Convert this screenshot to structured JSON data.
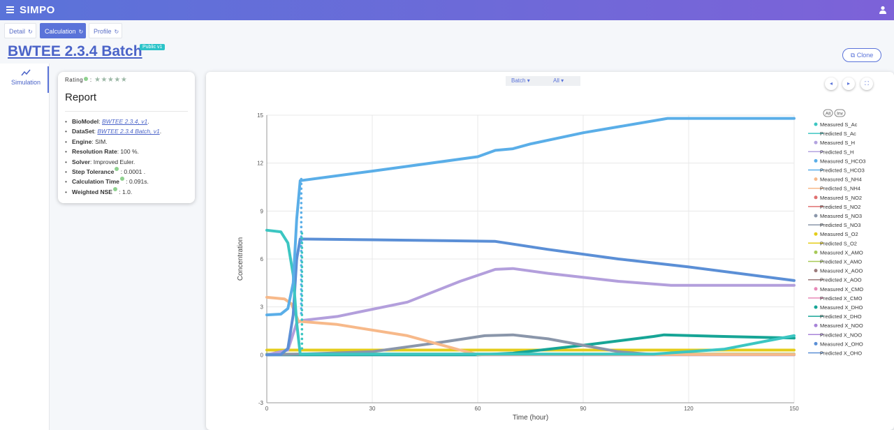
{
  "app": {
    "title": "SIMPO"
  },
  "tabs": [
    {
      "label": "Detail",
      "active": false
    },
    {
      "label": "Calculation",
      "active": true
    },
    {
      "label": "Profile",
      "active": false
    }
  ],
  "page": {
    "title": "BWTEE 2.3.4 Batch",
    "badge": "Public v1",
    "clone_label": "Clone"
  },
  "sidebar": {
    "items": [
      {
        "label": "Simulation",
        "icon": "line-chart-icon"
      }
    ]
  },
  "report": {
    "rating_label": "Rating",
    "rating_sep": ":",
    "stars": "★★★★★",
    "title": "Report",
    "biomodel_label": "BioModel",
    "biomodel_value": "BWTEE 2.3.4, v1",
    "dataset_label": "DataSet",
    "dataset_value": "BWTEE 2.3.4 Batch, v1",
    "engine_label": "Engine",
    "engine_value": ": SIM.",
    "resolution_label": "Resolution Rate",
    "resolution_value": ": 100 %.",
    "solver_label": "Solver",
    "solver_value": ": Improved Euler.",
    "step_label": "Step Tolerance",
    "step_value": ": 0.0001 .",
    "calc_label": "Calculation Time",
    "calc_value": ": 0.091s.",
    "nse_label": "Weighted NSE",
    "nse_value": ": 1.0."
  },
  "chart_controls": {
    "batch_label": "Batch",
    "all_label": "All",
    "legend_all": "All",
    "legend_inv": "Inv",
    "prev_icon": "chevron-left-icon",
    "next_icon": "chevron-right-icon",
    "fullscreen_icon": "fullscreen-icon"
  },
  "chart_data": {
    "type": "line",
    "xlabel": "Time (hour)",
    "ylabel": "Concentration",
    "xlim": [
      0,
      150
    ],
    "ylim": [
      -3,
      15
    ],
    "x_ticks": [
      0,
      30,
      60,
      90,
      120,
      150
    ],
    "y_ticks": [
      -3,
      0,
      3,
      6,
      9,
      12,
      15
    ],
    "grid": true,
    "legend_position": "right",
    "series": [
      {
        "name": "Predicted S_HCO3",
        "color": "#5aaee8",
        "points": [
          [
            0,
            2.5
          ],
          [
            4,
            2.55
          ],
          [
            6,
            2.9
          ],
          [
            7.5,
            4.5
          ],
          [
            8.5,
            8.5
          ],
          [
            9.5,
            10.9
          ],
          [
            30,
            11.5
          ],
          [
            60,
            12.4
          ],
          [
            65,
            12.8
          ],
          [
            70,
            12.9
          ],
          [
            75,
            13.2
          ],
          [
            90,
            13.9
          ],
          [
            114,
            14.8
          ],
          [
            150,
            14.8
          ]
        ]
      },
      {
        "name": "Predicted S_Ac",
        "color": "#3cc6c2",
        "points": [
          [
            0,
            7.8
          ],
          [
            4,
            7.7
          ],
          [
            6,
            7.0
          ],
          [
            7.5,
            5.0
          ],
          [
            8.5,
            2.0
          ],
          [
            9.5,
            0.05
          ],
          [
            110,
            0.05
          ],
          [
            130,
            0.35
          ],
          [
            150,
            1.2
          ]
        ]
      },
      {
        "name": "Predicted X_OHO",
        "color": "#5b8fd6",
        "points": [
          [
            0,
            0
          ],
          [
            4,
            0.02
          ],
          [
            6,
            0.4
          ],
          [
            7.5,
            2.5
          ],
          [
            8.5,
            6.0
          ],
          [
            9.5,
            7.25
          ],
          [
            30,
            7.2
          ],
          [
            50,
            7.15
          ],
          [
            65,
            7.1
          ],
          [
            80,
            6.6
          ],
          [
            100,
            6.0
          ],
          [
            120,
            5.5
          ],
          [
            150,
            4.65
          ]
        ]
      },
      {
        "name": "Predicted S_NH4",
        "color": "#f7b98a",
        "points": [
          [
            0,
            3.6
          ],
          [
            5,
            3.5
          ],
          [
            7,
            3.2
          ],
          [
            9,
            2.1
          ],
          [
            20,
            1.9
          ],
          [
            40,
            1.2
          ],
          [
            55,
            0.3
          ],
          [
            60,
            0.02
          ],
          [
            150,
            0.02
          ]
        ]
      },
      {
        "name": "Predicted X_NOO",
        "color": "#b39fdc",
        "points": [
          [
            0,
            0
          ],
          [
            6,
            0.3
          ],
          [
            8.5,
            2.0
          ],
          [
            10,
            2.15
          ],
          [
            20,
            2.4
          ],
          [
            40,
            3.3
          ],
          [
            55,
            4.6
          ],
          [
            65,
            5.35
          ],
          [
            70,
            5.4
          ],
          [
            80,
            5.1
          ],
          [
            100,
            4.6
          ],
          [
            115,
            4.35
          ],
          [
            150,
            4.35
          ]
        ]
      },
      {
        "name": "Predicted S_NO3",
        "color": "#8a96aa",
        "points": [
          [
            0,
            0
          ],
          [
            10,
            0.05
          ],
          [
            30,
            0.2
          ],
          [
            50,
            0.8
          ],
          [
            62,
            1.2
          ],
          [
            70,
            1.25
          ],
          [
            80,
            1.0
          ],
          [
            90,
            0.6
          ],
          [
            100,
            0.2
          ],
          [
            110,
            0.02
          ],
          [
            150,
            0.02
          ]
        ]
      },
      {
        "name": "Predicted X_DHO",
        "color": "#17a596",
        "points": [
          [
            0,
            0
          ],
          [
            60,
            0
          ],
          [
            70,
            0.1
          ],
          [
            90,
            0.6
          ],
          [
            110,
            1.15
          ],
          [
            113,
            1.25
          ],
          [
            130,
            1.15
          ],
          [
            150,
            1.05
          ]
        ]
      },
      {
        "name": "Predicted S_O2",
        "color": "#e4cd1a",
        "points": [
          [
            0,
            0.3
          ],
          [
            150,
            0.3
          ]
        ]
      },
      {
        "name": "Predicted X_AMO",
        "color": "#a7c957",
        "points": [
          [
            0,
            0.05
          ],
          [
            150,
            0.05
          ]
        ]
      },
      {
        "name": "Predicted X_CMO",
        "color": "#a783d8",
        "points": [
          [
            0,
            0.0
          ],
          [
            150,
            0.0
          ]
        ]
      }
    ],
    "measured_points": [
      {
        "name": "Measured S_HCO3",
        "color": "#5aaee8",
        "x": 9.8,
        "y_from": 2.6,
        "y_to": 11.0
      },
      {
        "name": "Measured S_Ac",
        "color": "#3cc6c2",
        "x": 10.0,
        "y_from": 0.4,
        "y_to": 7.6
      }
    ],
    "legend": [
      {
        "label": "Measured S_Ac",
        "color": "#3cc6c2",
        "kind": "dot"
      },
      {
        "label": "Predicted S_Ac",
        "color": "#3cc6c2",
        "kind": "line"
      },
      {
        "label": "Measured S_H",
        "color": "#b3a3e0",
        "kind": "dot"
      },
      {
        "label": "Predicted S_H",
        "color": "#b3a3e0",
        "kind": "line"
      },
      {
        "label": "Measured S_HCO3",
        "color": "#5aaee8",
        "kind": "dot"
      },
      {
        "label": "Predicted S_HCO3",
        "color": "#5aaee8",
        "kind": "line"
      },
      {
        "label": "Measured S_NH4",
        "color": "#f7b98a",
        "kind": "dot"
      },
      {
        "label": "Predicted S_NH4",
        "color": "#f7b98a",
        "kind": "line"
      },
      {
        "label": "Measured S_NO2",
        "color": "#e07070",
        "kind": "dot"
      },
      {
        "label": "Predicted S_NO2",
        "color": "#e07070",
        "kind": "line"
      },
      {
        "label": "Measured S_NO3",
        "color": "#8a96aa",
        "kind": "dot"
      },
      {
        "label": "Predicted S_NO3",
        "color": "#8a96aa",
        "kind": "line"
      },
      {
        "label": "Measured S_O2",
        "color": "#e4cd1a",
        "kind": "dot"
      },
      {
        "label": "Predicted S_O2",
        "color": "#e4cd1a",
        "kind": "line"
      },
      {
        "label": "Measured X_AMO",
        "color": "#a7c957",
        "kind": "dot"
      },
      {
        "label": "Predicted X_AMO",
        "color": "#a7c957",
        "kind": "line"
      },
      {
        "label": "Measured X_AOO",
        "color": "#9b7a7a",
        "kind": "dot"
      },
      {
        "label": "Predicted X_AOO",
        "color": "#9b7a7a",
        "kind": "line"
      },
      {
        "label": "Measured X_CMO",
        "color": "#e88ab8",
        "kind": "dot"
      },
      {
        "label": "Predicted X_CMO",
        "color": "#e88ab8",
        "kind": "line"
      },
      {
        "label": "Measured X_DHO",
        "color": "#17a596",
        "kind": "dot"
      },
      {
        "label": "Predicted X_DHO",
        "color": "#17a596",
        "kind": "line"
      },
      {
        "label": "Measured X_NOO",
        "color": "#a783d8",
        "kind": "dot"
      },
      {
        "label": "Predicted X_NOO",
        "color": "#a783d8",
        "kind": "line"
      },
      {
        "label": "Measured X_OHO",
        "color": "#5b8fd6",
        "kind": "dot"
      },
      {
        "label": "Predicted X_OHO",
        "color": "#5b8fd6",
        "kind": "line"
      }
    ]
  }
}
